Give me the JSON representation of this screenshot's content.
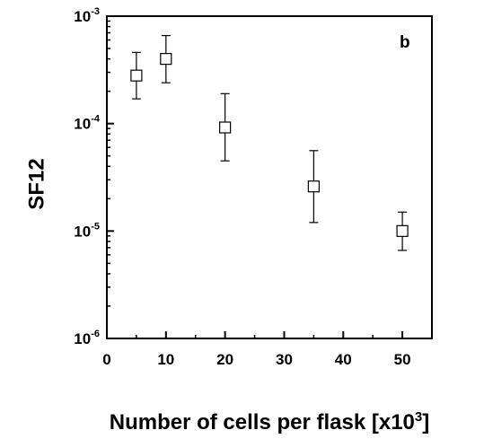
{
  "chart_data": {
    "type": "scatter",
    "panel_label": "b",
    "xlabel": "Number of cells per flask [x10",
    "xlabel_exponent": "3",
    "xlabel_suffix": "]",
    "ylabel": "SF12",
    "xlim": [
      0,
      55
    ],
    "ylim": [
      1e-06,
      0.001
    ],
    "y_scale": "log",
    "x_ticks": [
      {
        "value": 0,
        "label": "0"
      },
      {
        "value": 10,
        "label": "10"
      },
      {
        "value": 20,
        "label": "20"
      },
      {
        "value": 30,
        "label": "30"
      },
      {
        "value": 40,
        "label": "40"
      },
      {
        "value": 50,
        "label": "50"
      }
    ],
    "y_ticks": [
      {
        "value": 0.001,
        "base": "10",
        "exp": "-3"
      },
      {
        "value": 0.0001,
        "base": "10",
        "exp": "-4"
      },
      {
        "value": 1e-05,
        "base": "10",
        "exp": "-5"
      },
      {
        "value": 1e-06,
        "base": "10",
        "exp": "-6"
      }
    ],
    "grid": false,
    "marker": "open-square",
    "points": [
      {
        "x": 5,
        "y": 0.00028,
        "err_low": 0.00017,
        "err_high": 0.00046
      },
      {
        "x": 10,
        "y": 0.0004,
        "err_low": 0.00024,
        "err_high": 0.00066
      },
      {
        "x": 20,
        "y": 9.2e-05,
        "err_low": 4.5e-05,
        "err_high": 0.00019
      },
      {
        "x": 35,
        "y": 2.6e-05,
        "err_low": 1.2e-05,
        "err_high": 5.6e-05
      },
      {
        "x": 50,
        "y": 1e-05,
        "err_low": 6.6e-06,
        "err_high": 1.5e-05
      }
    ]
  }
}
